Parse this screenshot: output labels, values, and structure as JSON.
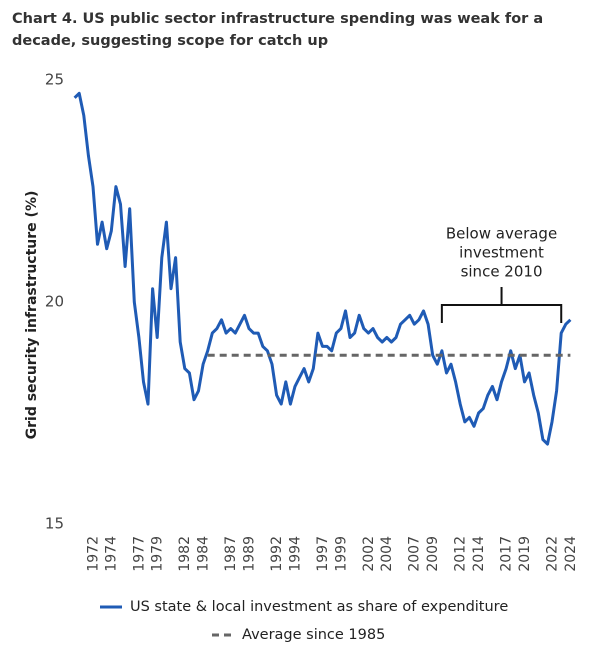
{
  "chart_data": {
    "type": "line",
    "title": "Chart 4. US public sector infrastructure spending was weak for a decade, suggesting scope for catch up",
    "y_label": "Grid security infrastructure (%)",
    "xlim": [
      1970,
      2025
    ],
    "xticks": [
      1972,
      1974,
      1977,
      1979,
      1982,
      1984,
      1987,
      1989,
      1992,
      1994,
      1997,
      1999,
      2002,
      2004,
      2007,
      2009,
      2012,
      2014,
      2017,
      2019,
      2022,
      2024
    ],
    "ylim": [
      15,
      25
    ],
    "yticks": [
      15,
      20,
      25
    ],
    "grid": false,
    "legend": "bottom",
    "series": [
      {
        "name": "US state & local investment as share of expenditure",
        "color": "#1f5bb5",
        "style": "solid",
        "x": [
          1970.5,
          1971,
          1971.5,
          1972,
          1972.5,
          1973,
          1973.5,
          1974,
          1974.5,
          1975,
          1975.5,
          1976,
          1976.5,
          1977,
          1977.5,
          1978,
          1978.5,
          1979,
          1979.5,
          1980,
          1980.5,
          1981,
          1981.5,
          1982,
          1982.5,
          1983,
          1983.5,
          1984,
          1984.5,
          1985,
          1985.5,
          1986,
          1986.5,
          1987,
          1987.5,
          1988,
          1988.5,
          1989,
          1989.5,
          1990,
          1990.5,
          1991,
          1991.5,
          1992,
          1992.5,
          1993,
          1993.5,
          1994,
          1994.5,
          1995,
          1995.5,
          1996,
          1996.5,
          1997,
          1997.5,
          1998,
          1998.5,
          1999,
          1999.5,
          2000,
          2000.5,
          2001,
          2001.5,
          2002,
          2002.5,
          2003,
          2003.5,
          2004,
          2004.5,
          2005,
          2005.5,
          2006,
          2006.5,
          2007,
          2007.5,
          2008,
          2008.5,
          2009,
          2009.5,
          2010,
          2010.5,
          2011,
          2011.5,
          2012,
          2012.5,
          2013,
          2013.5,
          2014,
          2014.5,
          2015,
          2015.5,
          2016,
          2016.5,
          2017,
          2017.5,
          2018,
          2018.5,
          2019,
          2019.5,
          2020,
          2020.5,
          2021,
          2021.5,
          2022,
          2022.5,
          2023,
          2023.5,
          2024,
          2024.5
        ],
        "values": [
          24.6,
          24.7,
          24.2,
          23.3,
          22.6,
          21.3,
          21.8,
          21.2,
          21.6,
          22.6,
          22.2,
          20.8,
          22.1,
          20.0,
          19.2,
          18.2,
          17.7,
          20.3,
          19.2,
          21.0,
          21.8,
          20.3,
          21.0,
          19.1,
          18.5,
          18.4,
          17.8,
          18.0,
          18.6,
          18.9,
          19.3,
          19.4,
          19.6,
          19.3,
          19.4,
          19.3,
          19.5,
          19.7,
          19.4,
          19.3,
          19.3,
          19.0,
          18.9,
          18.6,
          17.9,
          17.7,
          18.2,
          17.7,
          18.1,
          18.3,
          18.5,
          18.2,
          18.5,
          19.3,
          19.0,
          19.0,
          18.9,
          19.3,
          19.4,
          19.8,
          19.2,
          19.3,
          19.7,
          19.4,
          19.3,
          19.4,
          19.2,
          19.1,
          19.2,
          19.1,
          19.2,
          19.5,
          19.6,
          19.7,
          19.5,
          19.6,
          19.8,
          19.5,
          18.8,
          18.6,
          18.9,
          18.4,
          18.6,
          18.2,
          17.7,
          17.3,
          17.4,
          17.2,
          17.5,
          17.6,
          17.9,
          18.1,
          17.8,
          18.2,
          18.5,
          18.9,
          18.5,
          18.8,
          18.2,
          18.4,
          17.9,
          17.5,
          16.9,
          16.8,
          17.3,
          18.0,
          19.3,
          19.5,
          19.6
        ]
      },
      {
        "name": "Average since 1985",
        "color": "#666666",
        "style": "dashed",
        "x": [
          1985,
          2024.5
        ],
        "values": [
          18.8,
          18.8
        ]
      }
    ],
    "annotations": [
      {
        "lines": [
          "Below average",
          "investment",
          "since 2010"
        ],
        "x": [
          2010.5,
          2023.5
        ]
      }
    ]
  }
}
